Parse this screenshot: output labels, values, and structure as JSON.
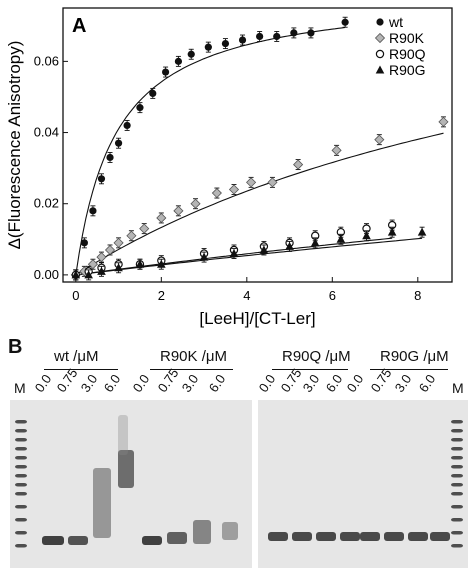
{
  "panel_a": {
    "letter": "A",
    "chart_data": {
      "type": "scatter",
      "title": "",
      "xlabel": "[LeeH]/[CT-Ler]",
      "ylabel": "Δ(Fluorescence Anisotropy)",
      "xlim": [
        -0.3,
        8.8
      ],
      "ylim": [
        -0.002,
        0.075
      ],
      "xticks": [
        0,
        2,
        4,
        6,
        8
      ],
      "yticks": [
        0.0,
        0.02,
        0.04,
        0.06
      ],
      "ytick_labels": [
        "0.00",
        "0.02",
        "0.04",
        "0.06"
      ],
      "legend_position": "top-right",
      "series": [
        {
          "name": "wt",
          "marker": "filled-circle",
          "color": "#111111",
          "x": [
            0,
            0.2,
            0.4,
            0.6,
            0.8,
            1.0,
            1.2,
            1.5,
            1.8,
            2.1,
            2.4,
            2.7,
            3.1,
            3.5,
            3.9,
            4.3,
            4.7,
            5.1,
            5.5,
            6.3
          ],
          "y": [
            0.0,
            0.009,
            0.018,
            0.027,
            0.033,
            0.037,
            0.042,
            0.047,
            0.051,
            0.057,
            0.06,
            0.062,
            0.064,
            0.065,
            0.066,
            0.067,
            0.067,
            0.068,
            0.068,
            0.071
          ]
        },
        {
          "name": "R90K",
          "marker": "diamond",
          "color": "#b5b5b5",
          "x": [
            0,
            0.2,
            0.4,
            0.6,
            0.8,
            1.0,
            1.3,
            1.6,
            2.0,
            2.4,
            2.8,
            3.3,
            3.7,
            4.1,
            4.6,
            5.2,
            6.1,
            7.1,
            8.6
          ],
          "y": [
            0.0,
            0.001,
            0.003,
            0.005,
            0.007,
            0.009,
            0.011,
            0.013,
            0.016,
            0.018,
            0.02,
            0.023,
            0.024,
            0.026,
            0.026,
            0.031,
            0.035,
            0.038,
            0.043
          ]
        },
        {
          "name": "R90Q",
          "marker": "open-circle",
          "color": "#111111",
          "x": [
            0,
            0.3,
            0.6,
            1.0,
            1.5,
            2.0,
            3.0,
            3.7,
            4.4,
            5.0,
            5.6,
            6.2,
            6.8,
            7.4
          ],
          "y": [
            0.0,
            0.001,
            0.002,
            0.003,
            0.003,
            0.004,
            0.006,
            0.007,
            0.008,
            0.009,
            0.011,
            0.012,
            0.013,
            0.014
          ]
        },
        {
          "name": "R90G",
          "marker": "filled-triangle",
          "color": "#111111",
          "x": [
            0,
            0.3,
            0.6,
            1.0,
            1.5,
            2.0,
            3.0,
            3.7,
            4.4,
            5.0,
            5.6,
            6.2,
            6.8,
            7.4,
            8.1
          ],
          "y": [
            0.0,
            0.0,
            0.001,
            0.002,
            0.003,
            0.003,
            0.005,
            0.006,
            0.007,
            0.008,
            0.009,
            0.01,
            0.011,
            0.012,
            0.012
          ]
        }
      ],
      "fits": [
        {
          "series": "wt",
          "type": "saturation",
          "bmax": 0.08,
          "kd": 0.95
        },
        {
          "series": "R90K",
          "type": "saturation",
          "bmax": 0.1,
          "kd": 13.0
        },
        {
          "series": "R90Q",
          "type": "saturation",
          "bmax": 0.08,
          "kd": 50.0
        },
        {
          "series": "R90G",
          "type": "saturation",
          "bmax": 0.08,
          "kd": 55.0
        }
      ]
    }
  },
  "panel_b": {
    "letter": "B",
    "groups": [
      {
        "label": "wt /μM",
        "lanes": [
          "0.0",
          "0.75",
          "3.0",
          "6.0"
        ]
      },
      {
        "label": "R90K /μM",
        "lanes": [
          "0.0",
          "0.75",
          "3.0",
          "6.0"
        ]
      },
      {
        "label": "R90Q /μM",
        "lanes": [
          "0.0",
          "0.75",
          "3.0",
          "6.0"
        ]
      },
      {
        "label": "R90G /μM",
        "lanes": [
          "0.0",
          "0.75",
          "3.0",
          "6.0"
        ]
      }
    ],
    "marker_label": "M",
    "gel_color": "#e6e6e6"
  }
}
